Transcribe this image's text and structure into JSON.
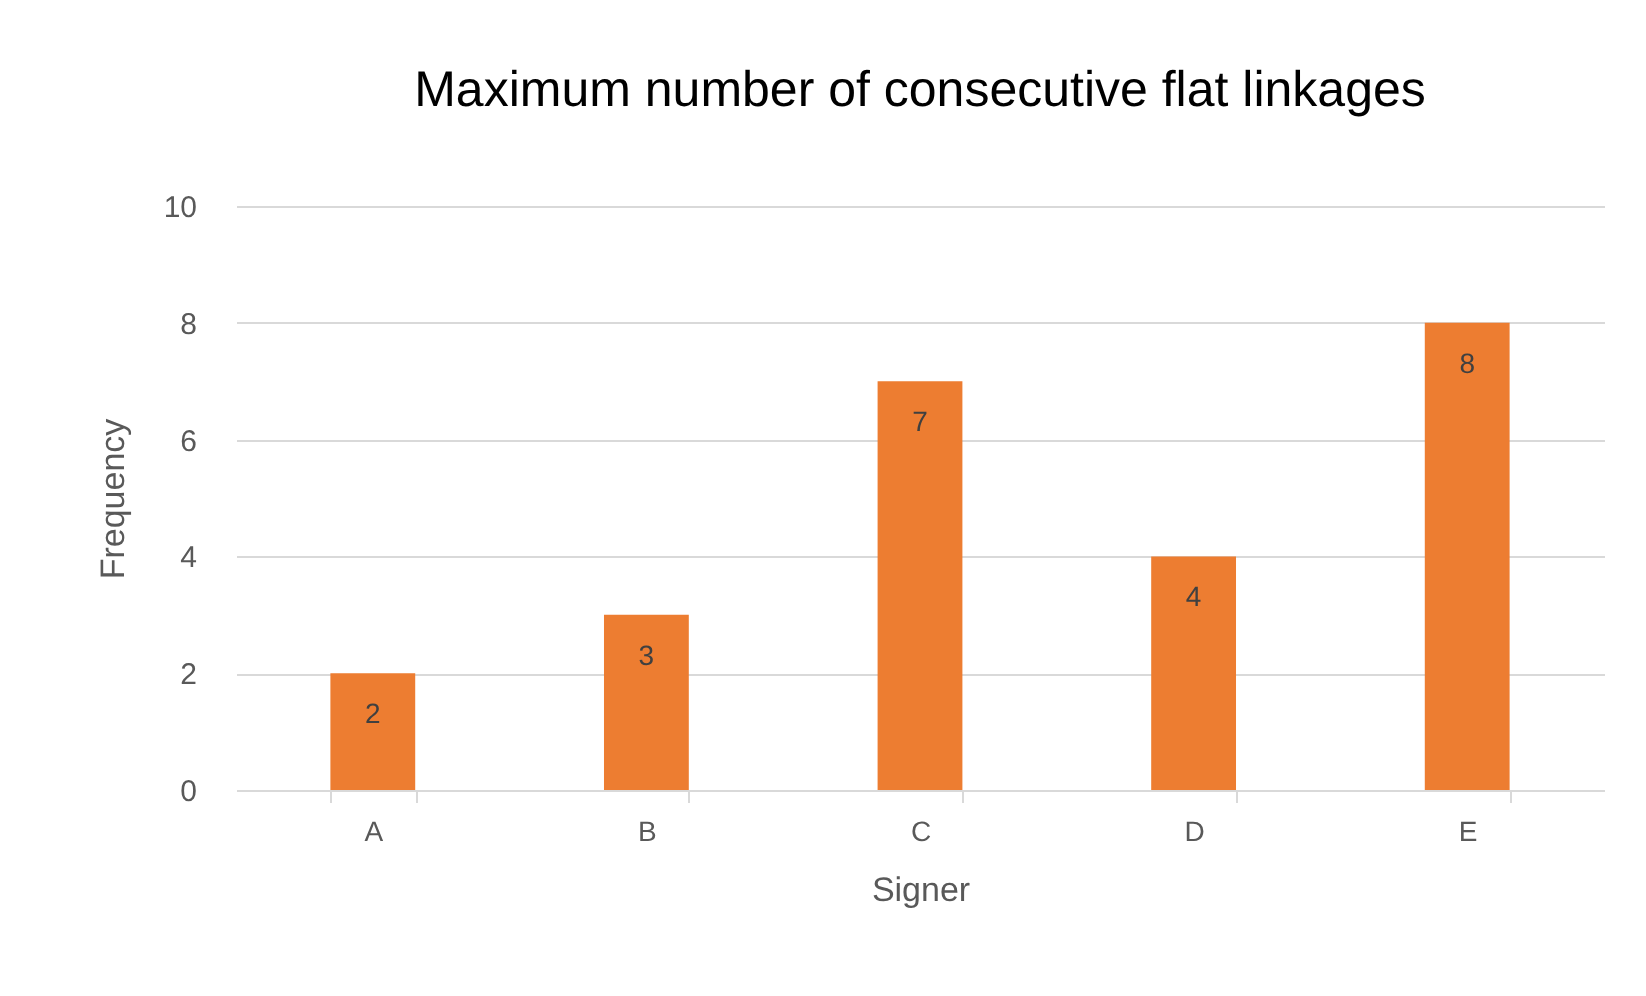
{
  "chart_data": {
    "type": "bar",
    "title": "Maximum number of consecutive flat linkages",
    "xlabel": "Signer",
    "ylabel": "Frequency",
    "categories": [
      "A",
      "B",
      "C",
      "D",
      "E"
    ],
    "values": [
      2,
      3,
      7,
      4,
      8
    ],
    "color": "#ed7d31",
    "ylim": [
      0,
      10
    ],
    "yticks": [
      0,
      2,
      4,
      6,
      8,
      10
    ],
    "grid": "y",
    "data_labels": true
  }
}
